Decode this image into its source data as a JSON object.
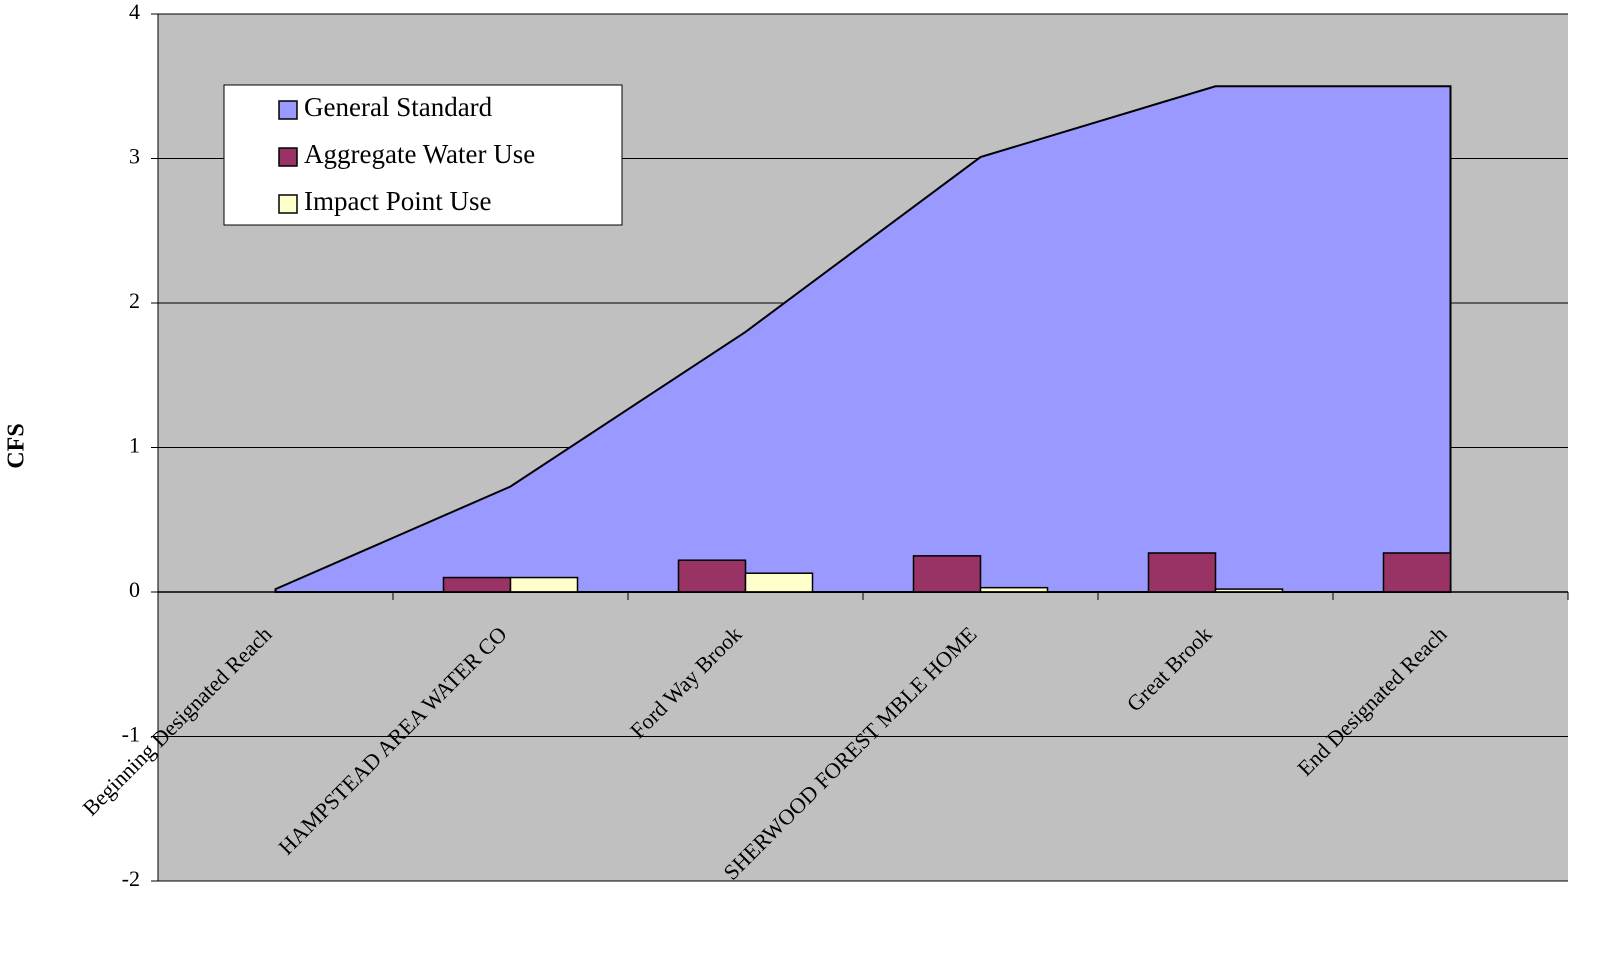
{
  "chart_data": {
    "type": "combo",
    "y_label": "CFS",
    "categories": [
      "Beginning Designated Reach",
      "HAMPSTEAD AREA WATER CO",
      "Ford Way Brook",
      "SHERWOOD FOREST MBLE HOME",
      "Great Brook",
      "End Designated Reach"
    ],
    "series": [
      {
        "name": "General Standard",
        "type": "area",
        "color": "#9999ff",
        "values": [
          0.02,
          0.73,
          1.8,
          3.01,
          3.5,
          3.5
        ]
      },
      {
        "name": "Aggregate Water Use",
        "type": "bar",
        "color": "#993366",
        "values": [
          0,
          0.1,
          0.22,
          0.25,
          0.27,
          0.27
        ]
      },
      {
        "name": "Impact Point Use",
        "type": "bar",
        "color": "#ffffcc",
        "values": [
          0,
          0.1,
          0.13,
          0.03,
          0.02,
          0
        ]
      }
    ],
    "ylim": [
      -2,
      4
    ],
    "yticks": [
      -2,
      -1,
      0,
      1,
      2,
      3,
      4
    ],
    "grid": true,
    "legend": "top-left",
    "plot_color": "#c0c0c0"
  }
}
